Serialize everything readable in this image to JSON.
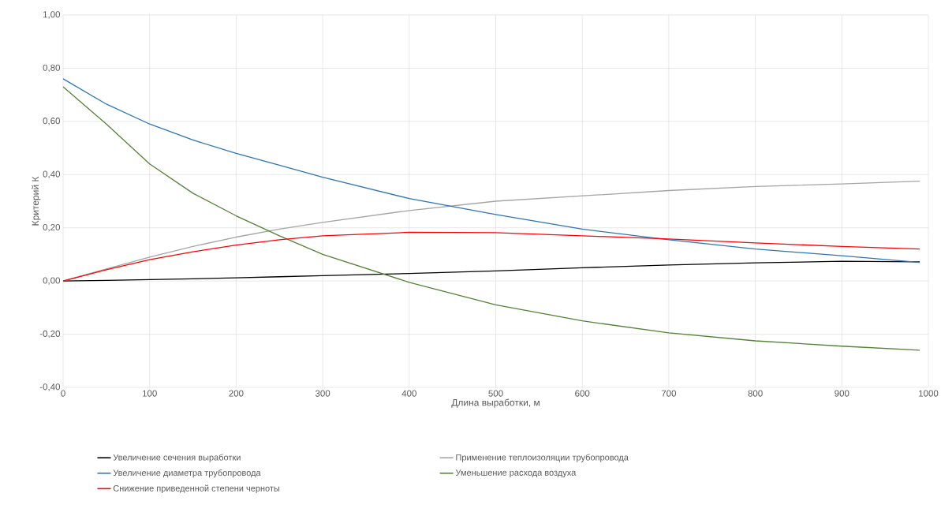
{
  "chart_data": {
    "type": "line",
    "xlabel": "Длина выработки, м",
    "ylabel": "Критерий К",
    "x": [
      0,
      50,
      100,
      150,
      200,
      250,
      300,
      400,
      500,
      600,
      700,
      800,
      900,
      990
    ],
    "series": [
      {
        "name": "Увеличение сечения выработки",
        "color": "#000000",
        "values": [
          0,
          0.002,
          0.005,
          0.008,
          0.012,
          0.016,
          0.02,
          0.028,
          0.038,
          0.05,
          0.06,
          0.068,
          0.074,
          0.072
        ]
      },
      {
        "name": "Применение теплоизоляции трубопровода",
        "color": "#a5a5a5",
        "values": [
          0,
          0.045,
          0.09,
          0.13,
          0.165,
          0.195,
          0.22,
          0.265,
          0.3,
          0.32,
          0.34,
          0.355,
          0.365,
          0.375
        ]
      },
      {
        "name": "Увеличение диаметра трубопровода",
        "color": "#2e75b6",
        "values": [
          0.76,
          0.665,
          0.59,
          0.53,
          0.48,
          0.435,
          0.39,
          0.31,
          0.25,
          0.195,
          0.155,
          0.12,
          0.095,
          0.07
        ]
      },
      {
        "name": "Уменьшение расхода воздуха",
        "color": "#548235",
        "values": [
          0.73,
          0.59,
          0.44,
          0.33,
          0.245,
          0.17,
          0.1,
          -0.005,
          -0.09,
          -0.15,
          -0.195,
          -0.225,
          -0.245,
          -0.26
        ]
      },
      {
        "name": "Снижение приведенной степени черноты",
        "color": "#ff0000",
        "values": [
          0,
          0.042,
          0.08,
          0.11,
          0.135,
          0.155,
          0.17,
          0.183,
          0.182,
          0.17,
          0.158,
          0.143,
          0.13,
          0.12
        ]
      }
    ],
    "xlim": [
      0,
      1000
    ],
    "xticks": [
      0,
      100,
      200,
      300,
      400,
      500,
      600,
      700,
      800,
      900,
      1000
    ],
    "ylim": [
      -0.4,
      1.0
    ],
    "yticks": [
      {
        "value": -0.4,
        "label": "-0,40"
      },
      {
        "value": -0.2,
        "label": "-0,20"
      },
      {
        "value": 0,
        "label": "0,00"
      },
      {
        "value": 0.2,
        "label": "0,20"
      },
      {
        "value": 0.4,
        "label": "0,40"
      },
      {
        "value": 0.6,
        "label": "0,60"
      },
      {
        "value": 0.8,
        "label": "0,80"
      },
      {
        "value": 1.0,
        "label": "1,00"
      }
    ],
    "grid": true,
    "legend": "bottom",
    "marker": "none",
    "line_style": "solid"
  }
}
